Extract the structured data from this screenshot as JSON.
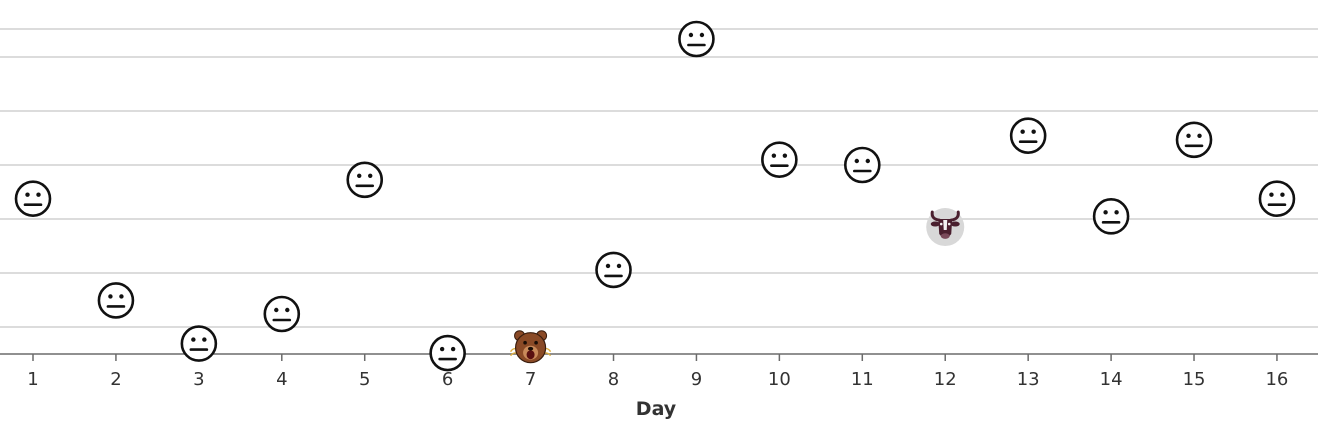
{
  "chart_data": {
    "type": "scatter",
    "title": "",
    "xlabel": "Day",
    "ylabel": "",
    "xlim": [
      0.6,
      16.4
    ],
    "ylim": [
      0,
      100
    ],
    "grid": true,
    "x_ticks": [
      "1",
      "2",
      "3",
      "4",
      "5",
      "6",
      "7",
      "8",
      "9",
      "10",
      "11",
      "12",
      "13",
      "14",
      "15",
      "16"
    ],
    "points": [
      {
        "x": 1,
        "y": 49.3,
        "icon": "neutral-face-icon"
      },
      {
        "x": 2,
        "y": 17.0,
        "icon": "neutral-face-icon"
      },
      {
        "x": 3,
        "y": 3.3,
        "icon": "neutral-face-icon"
      },
      {
        "x": 4,
        "y": 12.7,
        "icon": "neutral-face-icon"
      },
      {
        "x": 5,
        "y": 55.3,
        "icon": "neutral-face-icon"
      },
      {
        "x": 6,
        "y": 0.3,
        "icon": "neutral-face-icon"
      },
      {
        "x": 7,
        "y": 2.0,
        "icon": "bear-icon"
      },
      {
        "x": 8,
        "y": 26.7,
        "icon": "neutral-face-icon"
      },
      {
        "x": 9,
        "y": 100.0,
        "icon": "neutral-face-icon"
      },
      {
        "x": 10,
        "y": 61.7,
        "icon": "neutral-face-icon"
      },
      {
        "x": 11,
        "y": 60.0,
        "icon": "neutral-face-icon"
      },
      {
        "x": 12,
        "y": 40.3,
        "icon": "bull-icon"
      },
      {
        "x": 13,
        "y": 69.3,
        "icon": "neutral-face-icon"
      },
      {
        "x": 14,
        "y": 43.7,
        "icon": "neutral-face-icon"
      },
      {
        "x": 15,
        "y": 68.0,
        "icon": "neutral-face-icon"
      },
      {
        "x": 16,
        "y": 49.3,
        "icon": "neutral-face-icon"
      }
    ]
  },
  "colors": {
    "face_stroke": "#111111",
    "face_fill": "#ffffff",
    "bear_fur": "#8a4a26",
    "bear_muzzle": "#c98a5a",
    "bull_badge": "#d8d8d8",
    "bull_body": "#4a1f2e",
    "grid": "#d0d0d0",
    "axis": "#6b6b6b"
  }
}
